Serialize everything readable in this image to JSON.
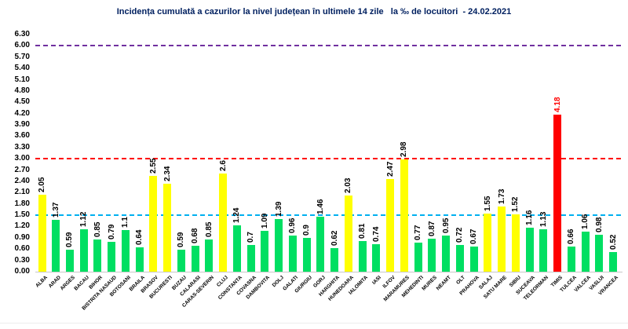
{
  "title": "Incidența cumulată a cazurilor la nivel județean în ultimele 14 zile   la ‰ de locuitori  - 24.02.2021",
  "colors": {
    "title_color": "#002060",
    "bar_green": "#00df62",
    "bar_yellow": "#ffff00",
    "bar_red": "#ff0000",
    "line_blue": "#00b0f0",
    "line_red": "#ff0000",
    "line_purple": "#7030a0",
    "axis_line": "#c9c9c9",
    "label_color": "#000000",
    "red_label_color": "#ff0000"
  },
  "chart_data": {
    "type": "bar",
    "title": "Incidența cumulată a cazurilor la nivel județean în ultimele 14 zile   la ‰ de locuitori  - 24.02.2021",
    "xlabel": "",
    "ylabel": "",
    "ylim": [
      0,
      6.3
    ],
    "grid": false,
    "yticks": [
      "0.00",
      "0.30",
      "0.60",
      "0.90",
      "1.20",
      "1.50",
      "1.80",
      "2.10",
      "2.40",
      "2.70",
      "3.00",
      "3.30",
      "3.60",
      "3.90",
      "4.20",
      "4.50",
      "4.80",
      "5.10",
      "5.40",
      "5.70",
      "6.00",
      "6.30"
    ],
    "threshold_lines": [
      {
        "value": 1.5,
        "color_key": "line_blue"
      },
      {
        "value": 3.0,
        "color_key": "line_red"
      },
      {
        "value": 6.0,
        "color_key": "line_purple"
      }
    ],
    "color_rule": {
      "red_min": 3.0,
      "yellow_min": 1.5
    },
    "categories": [
      "ALBA",
      "ARAD",
      "ARGES",
      "BACAU",
      "BIHOR",
      "BISTRITA NASAUD",
      "BOTOSANI",
      "BRAILA",
      "BRASOV",
      "BUCURESTI",
      "BUZAU",
      "CALARASI",
      "CARAS-SEVERIN",
      "CLUJ",
      "CONSTANTA",
      "COVASNA",
      "DAMBOVITA",
      "DOLJ",
      "GALATI",
      "GIURGIU",
      "GORJ",
      "HARGHITA",
      "HUNEDOARA",
      "IALOMITA",
      "IASI",
      "ILFOV",
      "MARAMURES",
      "MEHEDINTI",
      "MURES",
      "NEAMT",
      "OLT",
      "PRAHOVA",
      "SALAJ",
      "SATU MARE",
      "SIBIU",
      "SUCEAVA",
      "TELEORMAN",
      "TIMIS",
      "TULCEA",
      "VALCEA",
      "VASLUI",
      "VRANCEA"
    ],
    "values": [
      "2.05",
      "1.37",
      "0.59",
      "1.12",
      "0.85",
      "0.79",
      "1.1",
      "0.64",
      "2.55",
      "2.34",
      "0.59",
      "0.68",
      "0.85",
      "2.6",
      "1.24",
      "0.7",
      "1.09",
      "1.39",
      "0.96",
      "0.9",
      "1.46",
      "0.62",
      "2.03",
      "0.81",
      "0.74",
      "2.47",
      "2.98",
      "0.77",
      "0.87",
      "0.95",
      "0.72",
      "0.67",
      "1.55",
      "1.73",
      "1.52",
      "1.16",
      "1.13",
      "4.18",
      "0.66",
      "1.06",
      "0.98",
      "0.52"
    ]
  }
}
